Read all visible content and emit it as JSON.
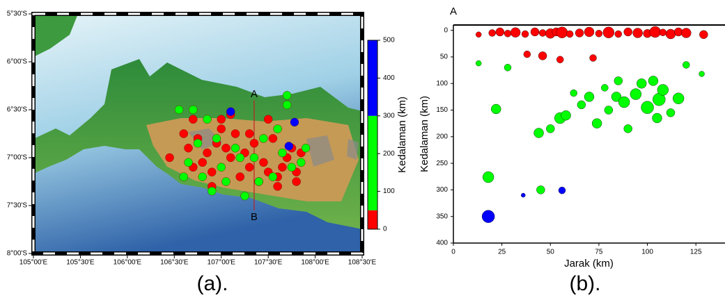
{
  "chart_data": [
    {
      "type": "map",
      "xlim": [
        105,
        108.5
      ],
      "ylim": [
        -8,
        -5.5
      ],
      "xticks": [
        {
          "value": 105,
          "label": "105°00'E"
        },
        {
          "value": 105.5,
          "label": "105°30'E"
        },
        {
          "value": 106,
          "label": "106°00'E"
        },
        {
          "value": 106.5,
          "label": "106°30'E"
        },
        {
          "value": 107,
          "label": "107°00'E"
        },
        {
          "value": 107.5,
          "label": "107°30'E"
        },
        {
          "value": 108,
          "label": "108°00'E"
        },
        {
          "value": 108.5,
          "label": "108°30'E"
        }
      ],
      "yticks": [
        {
          "value": -8,
          "label": "8°00'S"
        },
        {
          "value": -7.5,
          "label": "7°30'S"
        },
        {
          "value": -7,
          "label": "7°00'S"
        },
        {
          "value": -6.5,
          "label": "6°30'S"
        },
        {
          "value": -6,
          "label": "6°00'S"
        },
        {
          "value": -5.5,
          "label": "5°30'S"
        }
      ],
      "series": [
        {
          "color": "#ff0000",
          "x": [
            106.45,
            106.6,
            106.65,
            106.7,
            106.75,
            106.8,
            106.85,
            106.9,
            106.95,
            107.0,
            107.05,
            107.1,
            107.15,
            107.2,
            107.25,
            107.3,
            107.35,
            107.4,
            107.45,
            107.5,
            107.55,
            107.6,
            107.65,
            107.7,
            107.75,
            107.8,
            107.85,
            106.7,
            106.9,
            107.0,
            107.3,
            107.5,
            107.6,
            107.8,
            107.1
          ],
          "values": [
            -7.0,
            -6.75,
            -6.9,
            -7.1,
            -6.8,
            -7.05,
            -6.95,
            -7.15,
            -6.85,
            -6.6,
            -6.9,
            -7.0,
            -6.75,
            -7.2,
            -6.95,
            -7.1,
            -6.85,
            -7.25,
            -7.05,
            -7.15,
            -6.8,
            -7.2,
            -7.1,
            -7.0,
            -6.9,
            -7.15,
            -6.95,
            -6.6,
            -7.3,
            -6.7,
            -6.75,
            -6.6,
            -7.3,
            -7.25,
            -6.55
          ]
        },
        {
          "color": "#00ff00",
          "x": [
            106.55,
            106.6,
            106.7,
            106.8,
            106.9,
            107.0,
            107.05,
            107.15,
            107.25,
            107.35,
            107.45,
            107.55,
            107.65,
            107.75,
            107.85,
            107.9,
            107.7,
            107.7,
            106.65,
            106.75,
            107.2,
            107.4,
            106.95,
            107.6,
            106.85
          ],
          "values": [
            -6.5,
            -7.2,
            -6.5,
            -7.2,
            -7.35,
            -7.1,
            -7.25,
            -6.9,
            -7.4,
            -7.0,
            -6.8,
            -7.2,
            -6.95,
            -7.1,
            -7.05,
            -6.9,
            -6.35,
            -6.45,
            -7.05,
            -6.85,
            -7.0,
            -7.25,
            -6.8,
            -6.7,
            -6.6
          ]
        },
        {
          "color": "#0000ff",
          "x": [
            107.1,
            107.72,
            107.78
          ],
          "values": [
            -6.52,
            -6.88,
            -6.63
          ]
        }
      ],
      "profile": {
        "start": [
          107.35,
          -6.4
        ],
        "end": [
          107.35,
          -7.55
        ],
        "labels": [
          "A",
          "B"
        ]
      },
      "colorbar": {
        "label": "Kedalaman (km)",
        "lim": [
          0,
          500
        ],
        "ticks": [
          0,
          100,
          200,
          300,
          400,
          500
        ],
        "bands": [
          {
            "from": 0,
            "to": 50,
            "color": "#ff0000"
          },
          {
            "from": 50,
            "to": 300,
            "color": "#00ff00"
          },
          {
            "from": 300,
            "to": 500,
            "color": "#0000ff"
          }
        ]
      },
      "caption": "(a)."
    },
    {
      "type": "scatter",
      "label": "A",
      "xlabel": "Jarak (km)",
      "ylabel": "Kedalaman (km)",
      "xlim": [
        0,
        140
      ],
      "ylim": [
        400,
        -10
      ],
      "xticks": [
        0,
        25,
        50,
        75,
        100,
        125
      ],
      "yticks": [
        0,
        50,
        100,
        150,
        200,
        250,
        300,
        350,
        400
      ],
      "series": [
        {
          "color": "#ff0000",
          "x": [
            13,
            20,
            24,
            28,
            32,
            37,
            42,
            46,
            50,
            53,
            56,
            60,
            65,
            70,
            75,
            80,
            85,
            90,
            95,
            100,
            104,
            108,
            112,
            116,
            120,
            129,
            38,
            46,
            55,
            72
          ],
          "values": [
            8,
            5,
            3,
            6,
            4,
            7,
            3,
            5,
            6,
            3,
            4,
            7,
            5,
            3,
            6,
            4,
            7,
            3,
            5,
            6,
            3,
            4,
            7,
            3,
            5,
            8,
            45,
            48,
            55,
            52
          ],
          "sizes": [
            3.5,
            4,
            4.5,
            4,
            5,
            4,
            4.5,
            4,
            5,
            4.5,
            5.5,
            4,
            4.5,
            5,
            4,
            5.5,
            4,
            4.5,
            5,
            4.5,
            5.5,
            4,
            5,
            4.5,
            5,
            4.5,
            4,
            4.5,
            4,
            4
          ]
        },
        {
          "color": "#00ff00",
          "x": [
            13,
            18,
            22,
            28,
            44,
            45,
            50,
            55,
            58,
            62,
            66,
            70,
            74,
            78,
            80,
            84,
            88,
            90,
            94,
            97,
            100,
            103,
            106,
            108,
            112,
            116,
            120,
            128,
            105,
            85
          ],
          "values": [
            62,
            276,
            148,
            70,
            193,
            300,
            185,
            165,
            160,
            118,
            140,
            125,
            175,
            108,
            150,
            125,
            135,
            185,
            120,
            100,
            145,
            95,
            130,
            112,
            155,
            128,
            65,
            82,
            165,
            95
          ],
          "sizes": [
            3.5,
            5.5,
            5,
            4,
            5,
            4.5,
            4.5,
            5.5,
            5,
            4,
            4.5,
            5,
            5,
            4,
            4.5,
            5,
            5.5,
            4.5,
            5.5,
            5,
            6,
            5,
            6,
            5.5,
            4.5,
            5.5,
            4,
            3.5,
            5,
            4.5
          ]
        },
        {
          "color": "#0000ff",
          "x": [
            18,
            36,
            56
          ],
          "values": [
            350,
            310,
            301
          ],
          "sizes": [
            6,
            3,
            4
          ]
        }
      ],
      "caption": "(b)."
    }
  ]
}
